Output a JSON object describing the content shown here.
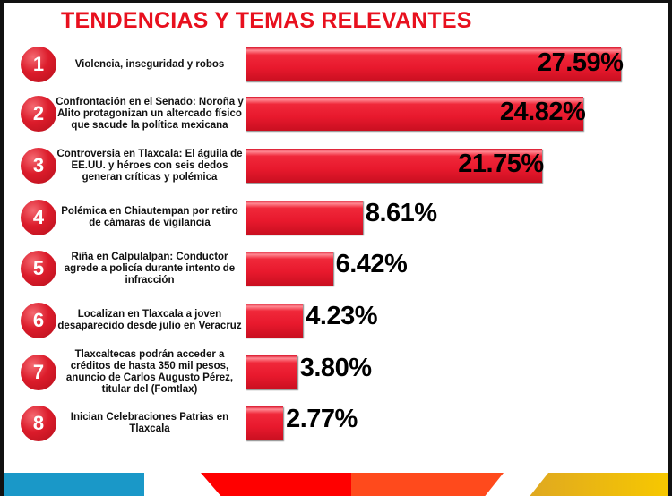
{
  "chart_data": {
    "type": "bar",
    "orientation": "horizontal",
    "title": "TENDENCIAS Y TEMAS RELEVANTES",
    "ranks": [
      "1",
      "2",
      "3",
      "4",
      "5",
      "6",
      "7",
      "8"
    ],
    "categories": [
      "Violencia, inseguridad y robos",
      "Confrontación en el Senado: Noroña y Alito protagonizan un altercado físico que sacude la política mexicana",
      "Controversia en Tlaxcala: El águila de EE.UU. y héroes con seis dedos generan críticas y polémica",
      "Polémica en Chiautempan por retiro de cámaras de vigilancia",
      "Riña en Calpulalpan: Conductor agrede a policía durante intento de infracción",
      "Localizan en Tlaxcala a joven desaparecido desde julio en Veracruz",
      "Tlaxcaltecas podrán acceder a créditos de hasta 350 mil pesos, anuncio de Carlos Augusto Pérez, titular del (Fomtlax)",
      "Inician Celebraciones Patrias en Tlaxcala"
    ],
    "values": [
      27.59,
      24.82,
      21.75,
      8.61,
      6.42,
      4.23,
      3.8,
      2.77
    ],
    "value_labels": [
      "27.59%",
      "24.82%",
      "21.75%",
      "8.61%",
      "6.42%",
      "4.23%",
      "3.80%",
      "2.77%"
    ],
    "unit": "%",
    "grid": false,
    "colors": {
      "title": "#e8101e",
      "bar": "#e8192d",
      "rank_circle": "#dc1c2b"
    }
  },
  "footer_colors": [
    "#1a98c8",
    "#ff0000",
    "#ff4a1c",
    "#f2b80c"
  ]
}
